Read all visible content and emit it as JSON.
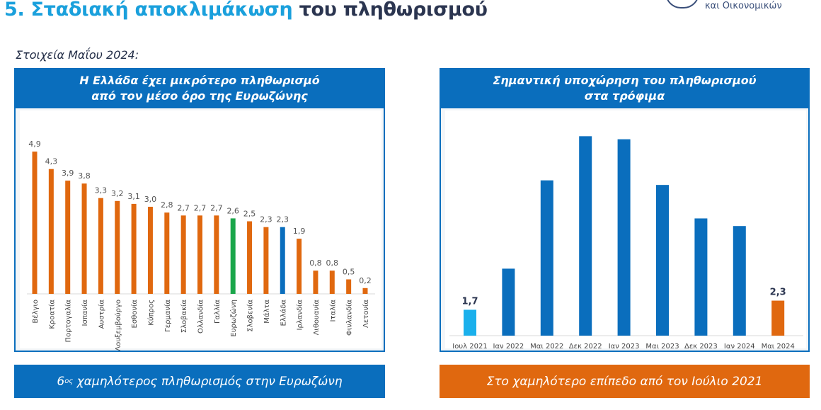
{
  "header": {
    "title_highlight": "5. Σταδιακή αποκλιμάκωση",
    "title_rest": "του πληθωρισμού",
    "logo_text": "και Οικονομικών"
  },
  "subtitle": "Στοιχεία Μαΐου 2024:",
  "left_panel": {
    "title_line1": "Η Ελλάδα έχει μικρότερο πληθωρισμό",
    "title_line2": "από τον μέσο όρο της Ευρωζώνης",
    "banner_pre": "6",
    "banner_sup": "ος",
    "banner_post": " χαμηλότερος πληθωρισμός στην Ευρωζώνη",
    "banner_color": "#0a6ebd"
  },
  "right_panel": {
    "title_line1": "Σημαντική υποχώρηση του πληθωρισμού",
    "title_line2": "στα τρόφιμα",
    "banner": "Στο χαμηλότερο επίπεδο από τον Ιούλιο 2021",
    "banner_color": "#e0680f"
  },
  "chart_data": [
    {
      "type": "bar",
      "categories": [
        "Βέλγιο",
        "Κροατία",
        "Πορτογαλία",
        "Ισπανία",
        "Αυστρία",
        "Λουξεμβούργο",
        "Εσθονία",
        "Κύπρος",
        "Γερμανία",
        "Σλοβακία",
        "Ολλανδία",
        "Γαλλία",
        "Ευρωζώνη",
        "Σλοβενία",
        "Μάλτα",
        "Ελλάδα",
        "Ιρλανδία",
        "Λιθουανία",
        "Ιταλία",
        "Φινλανδία",
        "Λετονία"
      ],
      "values": [
        4.9,
        4.3,
        3.9,
        3.8,
        3.3,
        3.2,
        3.1,
        3.0,
        2.8,
        2.7,
        2.7,
        2.7,
        2.6,
        2.5,
        2.3,
        2.3,
        1.9,
        0.8,
        0.8,
        0.5,
        0.2
      ],
      "labels": [
        "4,9",
        "4,3",
        "3,9",
        "3,8",
        "3,3",
        "3,2",
        "3,1",
        "3,0",
        "2,8",
        "2,7",
        "2,7",
        "2,7",
        "2,6",
        "2,5",
        "2,3",
        "2,3",
        "1,9",
        "0,8",
        "0,8",
        "0,5",
        "0,2"
      ],
      "colors": {
        "default": "#e0680f",
        "Ευρωζώνη": "#1aa64a",
        "Ελλάδα": "#0a6ebd"
      },
      "grid": false
    },
    {
      "type": "bar",
      "categories": [
        "Ιουλ 2021",
        "Ιαν 2022",
        "Μαι 2022",
        "Δεκ 2022",
        "Ιαν 2023",
        "Μαι 2023",
        "Δεκ 2023",
        "Ιαν 2024",
        "Μαι 2024"
      ],
      "values": [
        1.7,
        4.4,
        10.2,
        13.1,
        12.9,
        9.9,
        7.7,
        7.2,
        2.3
      ],
      "labels": [
        "1,7",
        "",
        "",
        "",
        "",
        "",
        "",
        "",
        "2,3"
      ],
      "colors": [
        "#1ab0ec",
        "#0a6ebd",
        "#0a6ebd",
        "#0a6ebd",
        "#0a6ebd",
        "#0a6ebd",
        "#0a6ebd",
        "#0a6ebd",
        "#e0680f"
      ],
      "grid": false
    }
  ]
}
